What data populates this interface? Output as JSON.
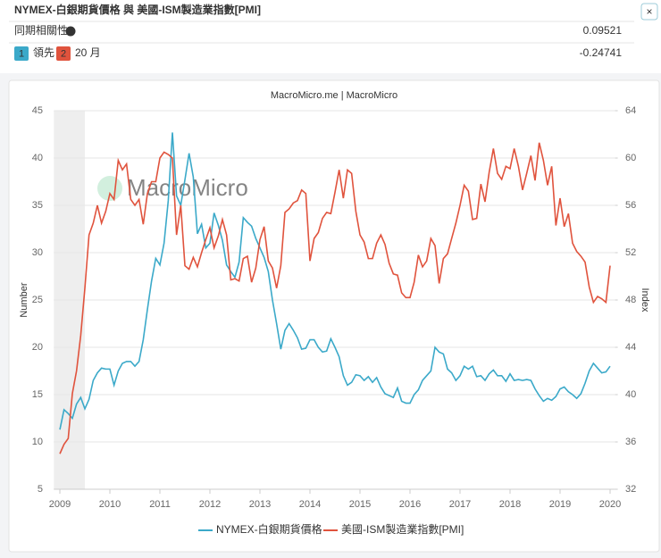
{
  "header": {
    "title": "NYMEX-白銀期貨價格 與 美國-ISM製造業指數[PMI]",
    "close": "×",
    "correlation": {
      "label": "同期相關性",
      "value": 0.09521
    },
    "lead": {
      "badges": [
        {
          "number": 1,
          "label": "領先"
        },
        {
          "number": 2,
          "label": "20 月"
        }
      ],
      "value": -0.24741
    }
  },
  "chart_data": {
    "type": "line",
    "source": "MacroMicro.me | MacroMicro",
    "watermark": "MacroMicro",
    "y_label": "Number",
    "y2_label": "Index",
    "xlim": [
      2008.88,
      2020.1
    ],
    "xticks": [
      2009,
      2010,
      2011,
      2012,
      2013,
      2014,
      2015,
      2016,
      2017,
      2018,
      2019,
      2020
    ],
    "ylim": [
      5,
      45
    ],
    "yticks": [
      5,
      10,
      15,
      20,
      25,
      30,
      35,
      40,
      45
    ],
    "y2lim": [
      32,
      64
    ],
    "y2ticks": [
      32,
      36,
      40,
      44,
      48,
      52,
      56,
      60,
      64
    ],
    "grid": true,
    "shaded_range": [
      2008.88,
      2009.5
    ],
    "legend": "bottom",
    "x": [
      2009,
      2009.083,
      2009.167,
      2009.25,
      2009.333,
      2009.417,
      2009.5,
      2009.583,
      2009.667,
      2009.75,
      2009.833,
      2009.917,
      2010,
      2010.083,
      2010.167,
      2010.25,
      2010.333,
      2010.417,
      2010.5,
      2010.583,
      2010.667,
      2010.75,
      2010.833,
      2010.917,
      2011,
      2011.083,
      2011.167,
      2011.25,
      2011.333,
      2011.417,
      2011.5,
      2011.583,
      2011.667,
      2011.75,
      2011.833,
      2011.917,
      2012,
      2012.083,
      2012.167,
      2012.25,
      2012.333,
      2012.417,
      2012.5,
      2012.583,
      2012.667,
      2012.75,
      2012.833,
      2012.917,
      2013,
      2013.083,
      2013.167,
      2013.25,
      2013.333,
      2013.417,
      2013.5,
      2013.583,
      2013.667,
      2013.75,
      2013.833,
      2013.917,
      2014,
      2014.083,
      2014.167,
      2014.25,
      2014.333,
      2014.417,
      2014.5,
      2014.583,
      2014.667,
      2014.75,
      2014.833,
      2014.917,
      2015,
      2015.083,
      2015.167,
      2015.25,
      2015.333,
      2015.417,
      2015.5,
      2015.583,
      2015.667,
      2015.75,
      2015.833,
      2015.917,
      2016,
      2016.083,
      2016.167,
      2016.25,
      2016.333,
      2016.417,
      2016.5,
      2016.583,
      2016.667,
      2016.75,
      2016.833,
      2016.917,
      2017,
      2017.083,
      2017.167,
      2017.25,
      2017.333,
      2017.417,
      2017.5,
      2017.583,
      2017.667,
      2017.75,
      2017.833,
      2017.917,
      2018,
      2018.083,
      2018.167,
      2018.25,
      2018.333,
      2018.417,
      2018.5,
      2018.583,
      2018.667,
      2018.75,
      2018.833,
      2018.917,
      2019,
      2019.083,
      2019.167,
      2019.25,
      2019.333,
      2019.417,
      2019.5,
      2019.583,
      2019.667,
      2019.75,
      2019.833,
      2019.917,
      2020
    ],
    "series": [
      {
        "name": "NYMEX-白銀期貨價格",
        "color": "#3ba9c9",
        "values": [
          11.3,
          13.4,
          13.0,
          12.5,
          14.0,
          14.7,
          13.5,
          14.5,
          16.5,
          17.3,
          17.8,
          17.7,
          17.7,
          16.0,
          17.5,
          18.3,
          18.5,
          18.5,
          18.0,
          18.5,
          20.8,
          24.0,
          27.0,
          29.4,
          28.7,
          31.0,
          35.5,
          42.7,
          36.0,
          35.0,
          37.7,
          40.5,
          38.0,
          32.0,
          33.0,
          30.5,
          31.0,
          34.2,
          32.9,
          31.3,
          28.7,
          28.0,
          27.4,
          29.0,
          33.7,
          33.2,
          32.8,
          31.5,
          30.5,
          29.5,
          28.0,
          25.0,
          22.5,
          19.8,
          21.8,
          22.5,
          21.8,
          21.0,
          19.8,
          19.9,
          20.8,
          20.8,
          20.0,
          19.5,
          19.6,
          20.9,
          20.0,
          19.0,
          17.0,
          16.0,
          16.3,
          17.1,
          17.0,
          16.5,
          16.9,
          16.3,
          16.8,
          15.8,
          15.1,
          14.9,
          14.7,
          15.7,
          14.3,
          14.1,
          14.1,
          15.0,
          15.5,
          16.5,
          17.0,
          17.5,
          20.0,
          19.5,
          19.3,
          17.7,
          17.3,
          16.5,
          17.0,
          18.0,
          17.7,
          18.0,
          16.9,
          17.0,
          16.5,
          17.2,
          17.6,
          17.0,
          17.0,
          16.4,
          17.2,
          16.5,
          16.6,
          16.5,
          16.6,
          16.5,
          15.6,
          14.9,
          14.3,
          14.6,
          14.4,
          14.8,
          15.6,
          15.8,
          15.3,
          15.0,
          14.6,
          15.1,
          16.2,
          17.5,
          18.3,
          17.8,
          17.3,
          17.4,
          18.0
        ]
      },
      {
        "name": "美國-ISM製造業指數[PMI]",
        "color": "#e0533d",
        "axis": "y2",
        "values": [
          35.0,
          35.8,
          36.3,
          40.1,
          42.0,
          45.0,
          49.0,
          53.5,
          54.5,
          56.0,
          54.5,
          55.5,
          57.0,
          56.5,
          59.8,
          59.0,
          59.5,
          56.5,
          56.0,
          56.5,
          54.4,
          57.0,
          58.0,
          58.0,
          60.0,
          60.5,
          60.3,
          60.0,
          53.5,
          56.0,
          50.9,
          50.6,
          51.6,
          50.8,
          52.0,
          53.1,
          54.1,
          52.4,
          53.4,
          54.8,
          53.5,
          49.7,
          49.8,
          49.6,
          51.5,
          51.7,
          49.5,
          50.7,
          53.1,
          54.2,
          51.3,
          50.7,
          49.0,
          50.9,
          55.4,
          55.7,
          56.2,
          56.4,
          57.3,
          57.0,
          51.3,
          53.2,
          53.7,
          54.9,
          55.4,
          55.3,
          57.1,
          59.0,
          56.6,
          59.0,
          58.7,
          55.5,
          53.5,
          52.9,
          51.5,
          51.5,
          52.8,
          53.5,
          52.7,
          51.1,
          50.2,
          50.1,
          48.6,
          48.2,
          48.2,
          49.5,
          51.8,
          50.8,
          51.3,
          53.2,
          52.6,
          49.4,
          51.5,
          51.9,
          53.2,
          54.5,
          56.0,
          57.7,
          57.2,
          54.8,
          54.9,
          57.8,
          56.3,
          58.8,
          60.8,
          58.7,
          58.2,
          59.3,
          59.1,
          60.8,
          59.3,
          57.3,
          58.7,
          60.2,
          58.1,
          61.3,
          59.8,
          57.7,
          59.3,
          54.3,
          56.6,
          54.2,
          55.3,
          52.8,
          52.1,
          51.7,
          51.2,
          49.1,
          47.8,
          48.3,
          48.1,
          47.8,
          50.9
        ]
      }
    ]
  }
}
